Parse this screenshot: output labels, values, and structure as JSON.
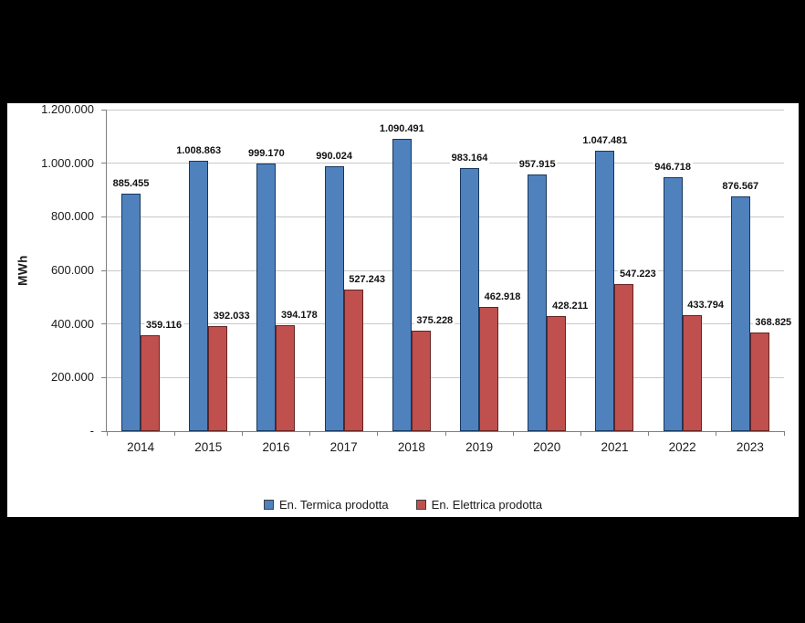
{
  "frame": {
    "background_color": "#000000",
    "panel_background_color": "#FFFFFF"
  },
  "chart_data": {
    "type": "bar",
    "title": "",
    "xlabel": "",
    "ylabel": "MWh",
    "categories": [
      "2014",
      "2015",
      "2016",
      "2017",
      "2018",
      "2019",
      "2020",
      "2021",
      "2022",
      "2023"
    ],
    "series": [
      {
        "name": "En. Termica prodotta",
        "color": "#4F81BD",
        "border_color": "#17375E",
        "values": [
          885455,
          1008863,
          999170,
          990024,
          1090491,
          983164,
          957915,
          1047481,
          946718,
          876567
        ],
        "labels": [
          "885.455",
          "1.008.863",
          "999.170",
          "990.024",
          "1.090.491",
          "983.164",
          "957.915",
          "1.047.481",
          "946.718",
          "876.567"
        ]
      },
      {
        "name": "En. Elettrica prodotta",
        "color": "#C0504D",
        "border_color": "#622423",
        "values": [
          359116,
          392033,
          394178,
          527243,
          375228,
          462918,
          428211,
          547223,
          433794,
          368825
        ],
        "labels": [
          "359.116",
          "392.033",
          "394.178",
          "527.243",
          "375.228",
          "462.918",
          "428.211",
          "547.223",
          "433.794",
          "368.825"
        ]
      }
    ],
    "y_axis": {
      "min": 0,
      "max": 1200000,
      "step": 200000,
      "tick_labels": [
        "-",
        "200.000",
        "400.000",
        "600.000",
        "800.000",
        "1.000.000",
        "1.200.000"
      ]
    },
    "grid": true,
    "gridline_color": "#C9C9C9",
    "axis_line_color": "#7F7F7F",
    "legend_position": "bottom"
  }
}
